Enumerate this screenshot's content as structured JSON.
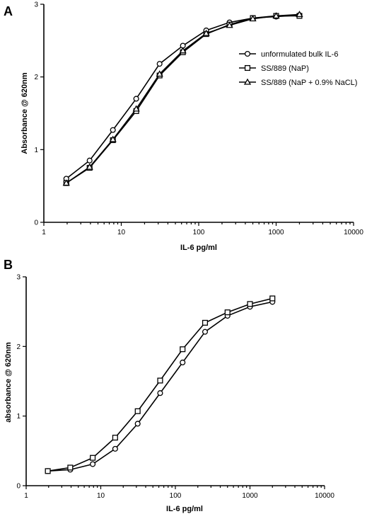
{
  "chart_data": [
    {
      "type": "line",
      "panel_label": "A",
      "xlabel": "IL-6 pg/ml",
      "ylabel": "Absorbance @ 620nm",
      "xscale": "log",
      "xlim": [
        1,
        10000
      ],
      "ylim": [
        0,
        3
      ],
      "x_ticks": [
        "1",
        "10",
        "100",
        "1000",
        "10000"
      ],
      "y_ticks": [
        "0",
        "1",
        "2",
        "3"
      ],
      "legend_position": "right",
      "grid": false,
      "x": [
        1.95,
        3.9,
        7.8,
        15.6,
        31.25,
        62.5,
        125,
        250,
        500,
        1000,
        2000
      ],
      "series": [
        {
          "name": "unformulated bulk IL-6",
          "marker": "circle",
          "values": [
            0.6,
            0.85,
            1.27,
            1.7,
            2.18,
            2.43,
            2.64,
            2.75,
            2.81,
            2.83,
            2.85
          ]
        },
        {
          "name": "SS/889 (NaP)",
          "marker": "square",
          "values": [
            0.54,
            0.75,
            1.13,
            1.53,
            2.02,
            2.34,
            2.59,
            2.72,
            2.81,
            2.84,
            2.84
          ]
        },
        {
          "name": "SS/889 (NaP + 0.9% NaCL)",
          "marker": "triangle",
          "values": [
            0.54,
            0.76,
            1.14,
            1.56,
            2.04,
            2.36,
            2.6,
            2.71,
            2.8,
            2.84,
            2.86
          ]
        }
      ]
    },
    {
      "type": "line",
      "panel_label": "B",
      "xlabel": "IL-6 pg/ml",
      "ylabel": "absorbance @ 620nm",
      "xscale": "log",
      "xlim": [
        1,
        10000
      ],
      "ylim": [
        0,
        3
      ],
      "x_ticks": [
        "1",
        "10",
        "100",
        "1000",
        "10000"
      ],
      "y_ticks": [
        "0",
        "1",
        "2",
        "3"
      ],
      "grid": false,
      "x": [
        1.95,
        3.9,
        7.8,
        15.6,
        31.25,
        62.5,
        125,
        250,
        500,
        1000,
        2000
      ],
      "series": [
        {
          "marker": "circle",
          "values": [
            0.21,
            0.23,
            0.31,
            0.53,
            0.89,
            1.33,
            1.77,
            2.21,
            2.44,
            2.57,
            2.64
          ]
        },
        {
          "marker": "square",
          "values": [
            0.21,
            0.26,
            0.4,
            0.69,
            1.07,
            1.51,
            1.96,
            2.34,
            2.49,
            2.61,
            2.69
          ]
        }
      ]
    }
  ]
}
